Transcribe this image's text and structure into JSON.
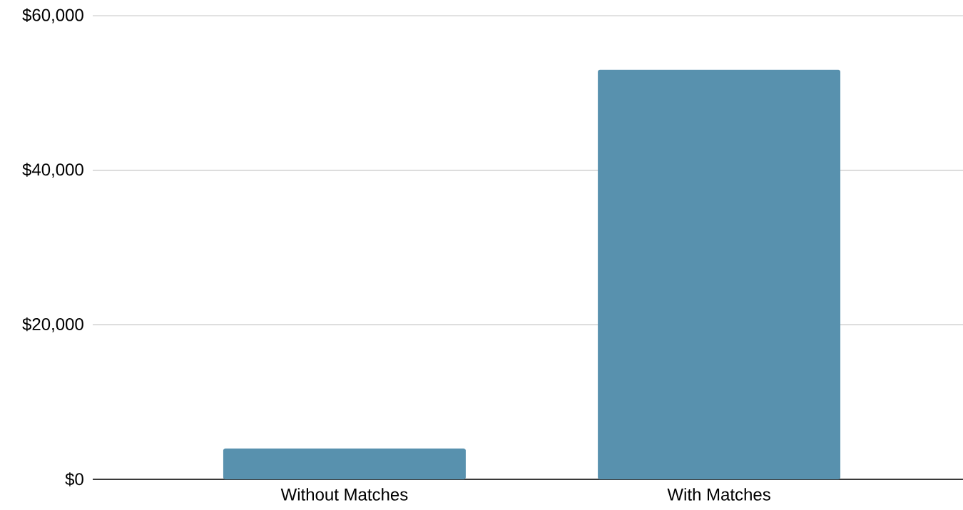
{
  "chart_data": {
    "type": "bar",
    "categories": [
      "Without Matches",
      "With Matches"
    ],
    "values": [
      4000,
      53000
    ],
    "color": "#5891ae",
    "ylim": [
      0,
      60000
    ],
    "yticks": [
      {
        "value": 0,
        "label": "$0"
      },
      {
        "value": 20000,
        "label": "$20,000"
      },
      {
        "value": 40000,
        "label": "$40,000"
      },
      {
        "value": 60000,
        "label": "$60,000"
      }
    ],
    "grid": "y"
  }
}
